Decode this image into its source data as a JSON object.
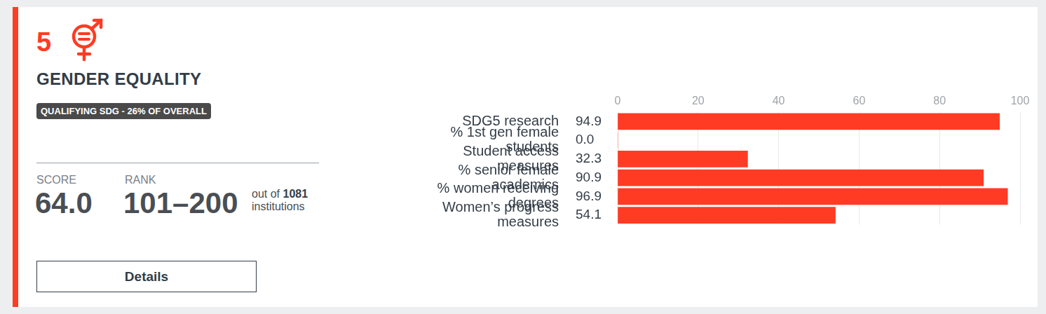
{
  "header": {
    "number": "5",
    "title": "GENDER EQUALITY",
    "badge": "QUALIFYING SDG - 26% OF OVERALL"
  },
  "score": {
    "label": "SCORE",
    "value": "64.0"
  },
  "rank": {
    "label": "RANK",
    "value": "101–200",
    "out_of_text": "out of",
    "out_of": "1081",
    "unit": "institutions"
  },
  "button": "Details",
  "chart_data": {
    "type": "bar",
    "orientation": "horizontal",
    "categories": [
      "SDG5 research",
      "% 1st gen female students",
      "Student access measures",
      "% senior female academics",
      "% women receiving degrees",
      "Women’s progress measures"
    ],
    "values": [
      94.9,
      0.0,
      32.3,
      90.9,
      96.9,
      54.1
    ],
    "value_labels": [
      "94.9",
      "0.0",
      "32.3",
      "90.9",
      "96.9",
      "54.1"
    ],
    "data_labels": true,
    "color": "#ff3b24",
    "xlim": [
      0,
      100
    ],
    "xticks": [
      0,
      20,
      40,
      60,
      80,
      100
    ],
    "grid": true
  }
}
